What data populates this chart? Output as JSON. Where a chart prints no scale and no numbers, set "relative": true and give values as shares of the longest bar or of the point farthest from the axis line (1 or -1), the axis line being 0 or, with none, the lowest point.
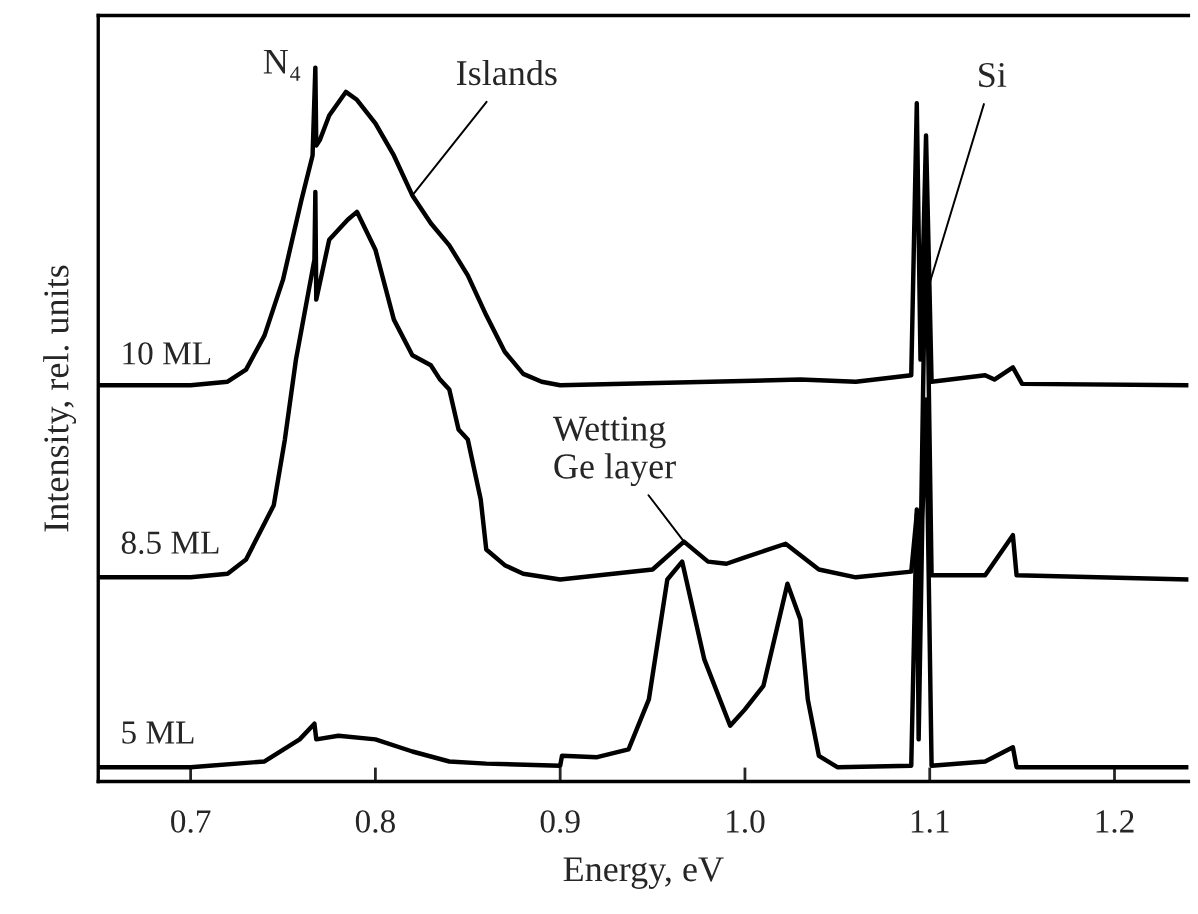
{
  "chart_data": {
    "type": "line",
    "relative": true,
    "xlabel": "Energy, eV",
    "ylabel": "Intensity, rel. units",
    "xlim": [
      0.65,
      1.24
    ],
    "xticks": [
      {
        "value": 0.7,
        "label": "0.7"
      },
      {
        "value": 0.8,
        "label": "0.8"
      },
      {
        "value": 0.9,
        "label": "0.9"
      },
      {
        "value": 1.0,
        "label": "1.0"
      },
      {
        "value": 1.1,
        "label": "1.1"
      },
      {
        "value": 1.2,
        "label": "1.2"
      }
    ],
    "grid": false,
    "legend": false,
    "marker": "none",
    "line_style": "solid",
    "series": [
      {
        "name": "10 ML",
        "color": "#000000",
        "x": [
          0.65,
          0.7,
          0.72,
          0.73,
          0.74,
          0.75,
          0.76,
          0.766,
          0.7675,
          0.768,
          0.77,
          0.775,
          0.784,
          0.79,
          0.8,
          0.81,
          0.82,
          0.83,
          0.84,
          0.85,
          0.86,
          0.87,
          0.88,
          0.89,
          0.9,
          1.03,
          1.06,
          1.09,
          1.093,
          1.095,
          1.098,
          1.101,
          1.13,
          1.135,
          1.145,
          1.15,
          1.24
        ],
        "values": [
          0.555,
          0.555,
          0.56,
          0.577,
          0.625,
          0.703,
          0.815,
          0.877,
          1.0,
          0.891,
          0.899,
          0.933,
          0.966,
          0.955,
          0.922,
          0.877,
          0.821,
          0.782,
          0.751,
          0.709,
          0.653,
          0.602,
          0.571,
          0.56,
          0.555,
          0.563,
          0.56,
          0.569,
          0.95,
          0.591,
          0.905,
          0.56,
          0.569,
          0.563,
          0.58,
          0.557,
          0.555
        ]
      },
      {
        "name": "8.5 ML",
        "color": "#000000",
        "x": [
          0.65,
          0.7,
          0.72,
          0.73,
          0.745,
          0.751,
          0.757,
          0.763,
          0.767,
          0.7675,
          0.768,
          0.775,
          0.785,
          0.79,
          0.8,
          0.81,
          0.82,
          0.83,
          0.835,
          0.84,
          0.845,
          0.85,
          0.857,
          0.86,
          0.87,
          0.88,
          0.9,
          0.95,
          0.967,
          0.98,
          0.99,
          1.0,
          1.022,
          1.04,
          1.06,
          1.09,
          1.093,
          1.095,
          1.098,
          1.101,
          1.13,
          1.145,
          1.147,
          1.24
        ],
        "values": [
          0.286,
          0.286,
          0.291,
          0.311,
          0.387,
          0.479,
          0.591,
          0.675,
          0.731,
          0.826,
          0.675,
          0.759,
          0.787,
          0.798,
          0.745,
          0.647,
          0.597,
          0.583,
          0.563,
          0.549,
          0.493,
          0.479,
          0.395,
          0.325,
          0.303,
          0.291,
          0.283,
          0.297,
          0.336,
          0.308,
          0.305,
          0.314,
          0.333,
          0.297,
          0.286,
          0.294,
          0.375,
          0.311,
          0.815,
          0.289,
          0.289,
          0.345,
          0.289,
          0.283
        ]
      },
      {
        "name": "5 ML",
        "color": "#000000",
        "x": [
          0.65,
          0.7,
          0.74,
          0.759,
          0.767,
          0.768,
          0.78,
          0.8,
          0.82,
          0.84,
          0.86,
          0.9,
          0.901,
          0.92,
          0.937,
          0.948,
          0.958,
          0.966,
          0.978,
          0.992,
          1.0,
          1.01,
          1.023,
          1.03,
          1.034,
          1.04,
          1.05,
          1.09,
          1.093,
          1.094,
          1.096,
          1.098,
          1.101,
          1.13,
          1.145,
          1.147,
          1.24
        ],
        "values": [
          0.02,
          0.02,
          0.028,
          0.059,
          0.081,
          0.059,
          0.064,
          0.059,
          0.042,
          0.028,
          0.025,
          0.022,
          0.036,
          0.034,
          0.045,
          0.115,
          0.283,
          0.308,
          0.171,
          0.078,
          0.101,
          0.134,
          0.277,
          0.227,
          0.115,
          0.036,
          0.02,
          0.022,
          0.381,
          0.059,
          0.367,
          0.535,
          0.022,
          0.028,
          0.048,
          0.02,
          0.02
        ]
      }
    ],
    "annotations": [
      {
        "text": "N₄",
        "x": 0.7675,
        "y": 1.0
      },
      {
        "text": "Islands",
        "x": 0.82,
        "y": 0.821
      },
      {
        "text": "Wetting\nGe layer",
        "x": 0.967,
        "y": 0.336
      },
      {
        "text": "Si",
        "x": 1.099,
        "y": 0.69
      }
    ]
  }
}
